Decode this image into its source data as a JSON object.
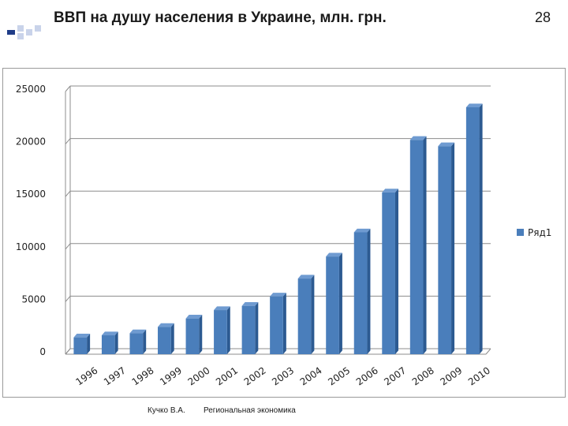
{
  "slide": {
    "title": "ВВП на душу населения в Украине, млн. грн.",
    "number": "28",
    "footer_author": "Кучко В.А.",
    "footer_course": "Региональная экономика"
  },
  "colors": {
    "bar": "#4a7ebb",
    "bar_side": "#2c5a91",
    "bar_top": "#6f9bd1",
    "grid": "#8c8c8c",
    "decor_blue": "#1f3c88",
    "decor_light": "#c9d3ea"
  },
  "chart_data": {
    "type": "bar",
    "categories": [
      "1996",
      "1997",
      "1998",
      "1999",
      "2000",
      "2001",
      "2002",
      "2003",
      "2004",
      "2005",
      "2006",
      "2007",
      "2008",
      "2009",
      "2010"
    ],
    "series": [
      {
        "name": "Ряд1",
        "values": [
          1600,
          1800,
          2000,
          2600,
          3400,
          4200,
          4600,
          5500,
          7200,
          9300,
          11600,
          15400,
          20400,
          19800,
          23500
        ]
      }
    ],
    "ylim": [
      0,
      25000
    ],
    "yticks": [
      0,
      5000,
      10000,
      15000,
      20000,
      25000
    ],
    "grid": true,
    "legend": "right"
  }
}
